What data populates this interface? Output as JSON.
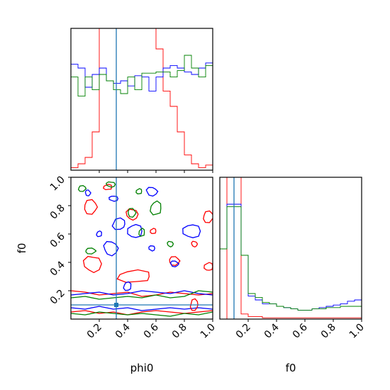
{
  "chart_data": {
    "type": "corner",
    "parameters": [
      "phi0",
      "f0"
    ],
    "truth": {
      "phi0": 0.32,
      "f0": 0.1
    },
    "colors": {
      "chain_a": "#ff0000",
      "chain_b": "#0000ff",
      "chain_c": "#008000",
      "truth": "#1f77b4"
    },
    "panels": [
      {
        "id": "phi0-marginal",
        "type": "step-histogram",
        "xlim": [
          0,
          1
        ],
        "bins": 20,
        "series": [
          {
            "name": "chain_a",
            "values": [
              0.02,
              0.05,
              0.1,
              0.3,
              2.0,
              2.0,
              2.0,
              2.0,
              2.0,
              2.0,
              2.0,
              1.8,
              0.95,
              0.62,
              0.5,
              0.3,
              0.12,
              0.05,
              0.02,
              0.04
            ]
          },
          {
            "name": "chain_b",
            "values": [
              0.83,
              0.8,
              0.65,
              0.75,
              0.8,
              0.7,
              0.68,
              0.7,
              0.66,
              0.74,
              0.73,
              0.62,
              0.73,
              0.8,
              0.82,
              0.8,
              0.77,
              0.75,
              0.8,
              0.84
            ]
          },
          {
            "name": "chain_c",
            "values": [
              0.73,
              0.58,
              0.73,
              0.63,
              0.75,
              0.7,
              0.63,
              0.6,
              0.73,
              0.63,
              0.76,
              0.76,
              0.77,
              0.77,
              0.73,
              0.78,
              0.9,
              0.8,
              0.73,
              0.82
            ]
          }
        ]
      },
      {
        "id": "f0-marginal",
        "type": "step-histogram",
        "xlim": [
          0,
          1
        ],
        "bins": 20,
        "series": [
          {
            "name": "chain_a",
            "values": [
              0.0,
              3.0,
              3.0,
              0.04,
              0.02,
              0.02,
              0.01,
              0.01,
              0.01,
              0.01,
              0.01,
              0.01,
              0.01,
              0.01,
              0.01,
              0.01,
              0.01,
              0.01,
              0.01,
              0.01
            ]
          },
          {
            "name": "chain_b",
            "values": [
              0.55,
              0.9,
              0.9,
              0.5,
              0.18,
              0.15,
              0.12,
              0.12,
              0.1,
              0.09,
              0.08,
              0.07,
              0.07,
              0.08,
              0.09,
              0.1,
              0.11,
              0.12,
              0.14,
              0.15
            ]
          },
          {
            "name": "chain_c",
            "values": [
              0.55,
              0.88,
              0.88,
              0.5,
              0.2,
              0.17,
              0.13,
              0.12,
              0.1,
              0.09,
              0.08,
              0.07,
              0.07,
              0.08,
              0.08,
              0.09,
              0.09,
              0.1,
              0.1,
              0.1
            ]
          }
        ]
      },
      {
        "id": "phi0-f0-joint",
        "type": "contour",
        "xlabel": "phi0",
        "ylabel": "f0",
        "xlim": [
          0,
          1
        ],
        "ylim": [
          0,
          1
        ],
        "xticks": [
          "0.2",
          "0.4",
          "0.6",
          "0.8",
          "1.0"
        ],
        "yticks": [
          "0.2",
          "0.4",
          "0.6",
          "0.8",
          "1.0"
        ],
        "contours": [
          {
            "series": "chain_a",
            "kind": "band",
            "x": [
              0.0,
              0.1,
              0.2,
              0.3,
              0.4,
              0.5,
              0.6,
              0.7,
              0.8,
              0.9,
              1.0
            ],
            "y": [
              0.2,
              0.19,
              0.17,
              0.18,
              0.19,
              0.16,
              0.17,
              0.19,
              0.18,
              0.17,
              0.18
            ]
          },
          {
            "series": "chain_a",
            "kind": "band",
            "x": [
              0.0,
              0.1,
              0.2,
              0.3,
              0.4,
              0.5,
              0.6,
              0.7,
              0.8,
              0.9,
              1.0
            ],
            "y": [
              0.05,
              0.06,
              0.04,
              0.05,
              0.03,
              0.05,
              0.06,
              0.05,
              0.04,
              0.05,
              0.06
            ]
          },
          {
            "series": "chain_b",
            "kind": "band",
            "x": [
              0.0,
              0.1,
              0.2,
              0.3,
              0.4,
              0.5,
              0.6,
              0.7,
              0.8,
              0.9,
              1.0
            ],
            "y": [
              0.17,
              0.18,
              0.19,
              0.17,
              0.18,
              0.2,
              0.19,
              0.18,
              0.2,
              0.18,
              0.17
            ]
          },
          {
            "series": "chain_b",
            "kind": "band",
            "x": [
              0.0,
              0.1,
              0.2,
              0.3,
              0.4,
              0.5,
              0.6,
              0.7,
              0.8,
              0.9,
              1.0
            ],
            "y": [
              0.08,
              0.07,
              0.09,
              0.07,
              0.08,
              0.06,
              0.07,
              0.08,
              0.07,
              0.08,
              0.07
            ]
          },
          {
            "series": "chain_c",
            "kind": "band",
            "x": [
              0.0,
              0.1,
              0.2,
              0.3,
              0.4,
              0.5,
              0.6,
              0.7,
              0.8,
              0.9,
              1.0
            ],
            "y": [
              0.15,
              0.16,
              0.14,
              0.15,
              0.16,
              0.15,
              0.17,
              0.15,
              0.16,
              0.2,
              0.19
            ]
          },
          {
            "series": "chain_c",
            "kind": "band",
            "x": [
              0.0,
              0.1,
              0.2,
              0.3,
              0.4,
              0.5,
              0.6,
              0.7,
              0.8,
              0.9,
              1.0
            ],
            "y": [
              0.04,
              0.03,
              0.05,
              0.04,
              0.03,
              0.04,
              0.03,
              0.02,
              0.04,
              0.03,
              0.05
            ]
          },
          {
            "series": "chain_a",
            "kind": "blob",
            "cx": 0.45,
            "cy": 0.3,
            "rx": 0.12,
            "ry": 0.045
          },
          {
            "series": "chain_a",
            "kind": "blob",
            "cx": 0.73,
            "cy": 0.41,
            "rx": 0.04,
            "ry": 0.03
          },
          {
            "series": "chain_a",
            "kind": "blob",
            "cx": 0.15,
            "cy": 0.39,
            "rx": 0.06,
            "ry": 0.06
          },
          {
            "series": "chain_a",
            "kind": "blob",
            "cx": 0.26,
            "cy": 0.93,
            "rx": 0.03,
            "ry": 0.02
          },
          {
            "series": "chain_a",
            "kind": "blob",
            "cx": 0.14,
            "cy": 0.79,
            "rx": 0.05,
            "ry": 0.05
          },
          {
            "series": "chain_a",
            "kind": "blob",
            "cx": 0.43,
            "cy": 0.74,
            "rx": 0.04,
            "ry": 0.04
          },
          {
            "series": "chain_a",
            "kind": "blob",
            "cx": 0.58,
            "cy": 0.62,
            "rx": 0.02,
            "ry": 0.02
          },
          {
            "series": "chain_a",
            "kind": "blob",
            "cx": 0.97,
            "cy": 0.72,
            "rx": 0.04,
            "ry": 0.04
          },
          {
            "series": "chain_a",
            "kind": "blob",
            "cx": 0.87,
            "cy": 0.53,
            "rx": 0.02,
            "ry": 0.02
          },
          {
            "series": "chain_a",
            "kind": "blob",
            "cx": 0.97,
            "cy": 0.37,
            "rx": 0.03,
            "ry": 0.03
          },
          {
            "series": "chain_a",
            "kind": "blob",
            "cx": 0.87,
            "cy": 0.1,
            "rx": 0.03,
            "ry": 0.04
          },
          {
            "series": "chain_b",
            "kind": "blob",
            "cx": 0.28,
            "cy": 0.5,
            "rx": 0.05,
            "ry": 0.05
          },
          {
            "series": "chain_b",
            "kind": "blob",
            "cx": 0.45,
            "cy": 0.62,
            "rx": 0.05,
            "ry": 0.05
          },
          {
            "series": "chain_b",
            "kind": "blob",
            "cx": 0.34,
            "cy": 0.67,
            "rx": 0.05,
            "ry": 0.04
          },
          {
            "series": "chain_b",
            "kind": "blob",
            "cx": 0.57,
            "cy": 0.9,
            "rx": 0.04,
            "ry": 0.03
          },
          {
            "series": "chain_b",
            "kind": "blob",
            "cx": 0.85,
            "cy": 0.62,
            "rx": 0.06,
            "ry": 0.05
          },
          {
            "series": "chain_b",
            "kind": "blob",
            "cx": 0.4,
            "cy": 0.23,
            "rx": 0.03,
            "ry": 0.03
          },
          {
            "series": "chain_b",
            "kind": "blob",
            "cx": 0.73,
            "cy": 0.39,
            "rx": 0.03,
            "ry": 0.02
          },
          {
            "series": "chain_b",
            "kind": "blob",
            "cx": 0.3,
            "cy": 0.85,
            "rx": 0.03,
            "ry": 0.02
          },
          {
            "series": "chain_b",
            "kind": "blob",
            "cx": 0.2,
            "cy": 0.6,
            "rx": 0.02,
            "ry": 0.02
          },
          {
            "series": "chain_b",
            "kind": "blob",
            "cx": 0.12,
            "cy": 0.89,
            "rx": 0.02,
            "ry": 0.02
          },
          {
            "series": "chain_b",
            "kind": "blob",
            "cx": 0.57,
            "cy": 0.5,
            "rx": 0.02,
            "ry": 0.02
          },
          {
            "series": "chain_c",
            "kind": "blob",
            "cx": 0.6,
            "cy": 0.78,
            "rx": 0.04,
            "ry": 0.05
          },
          {
            "series": "chain_c",
            "kind": "blob",
            "cx": 0.43,
            "cy": 0.75,
            "rx": 0.03,
            "ry": 0.03
          },
          {
            "series": "chain_c",
            "kind": "blob",
            "cx": 0.28,
            "cy": 0.95,
            "rx": 0.03,
            "ry": 0.02
          },
          {
            "series": "chain_c",
            "kind": "blob",
            "cx": 0.5,
            "cy": 0.61,
            "rx": 0.02,
            "ry": 0.03
          },
          {
            "series": "chain_c",
            "kind": "blob",
            "cx": 0.14,
            "cy": 0.48,
            "rx": 0.04,
            "ry": 0.02
          },
          {
            "series": "chain_c",
            "kind": "blob",
            "cx": 0.7,
            "cy": 0.53,
            "rx": 0.02,
            "ry": 0.02
          },
          {
            "series": "chain_c",
            "kind": "blob",
            "cx": 0.48,
            "cy": 0.9,
            "rx": 0.02,
            "ry": 0.02
          },
          {
            "series": "chain_c",
            "kind": "blob",
            "cx": 0.08,
            "cy": 0.92,
            "rx": 0.03,
            "ry": 0.02
          }
        ]
      }
    ]
  }
}
